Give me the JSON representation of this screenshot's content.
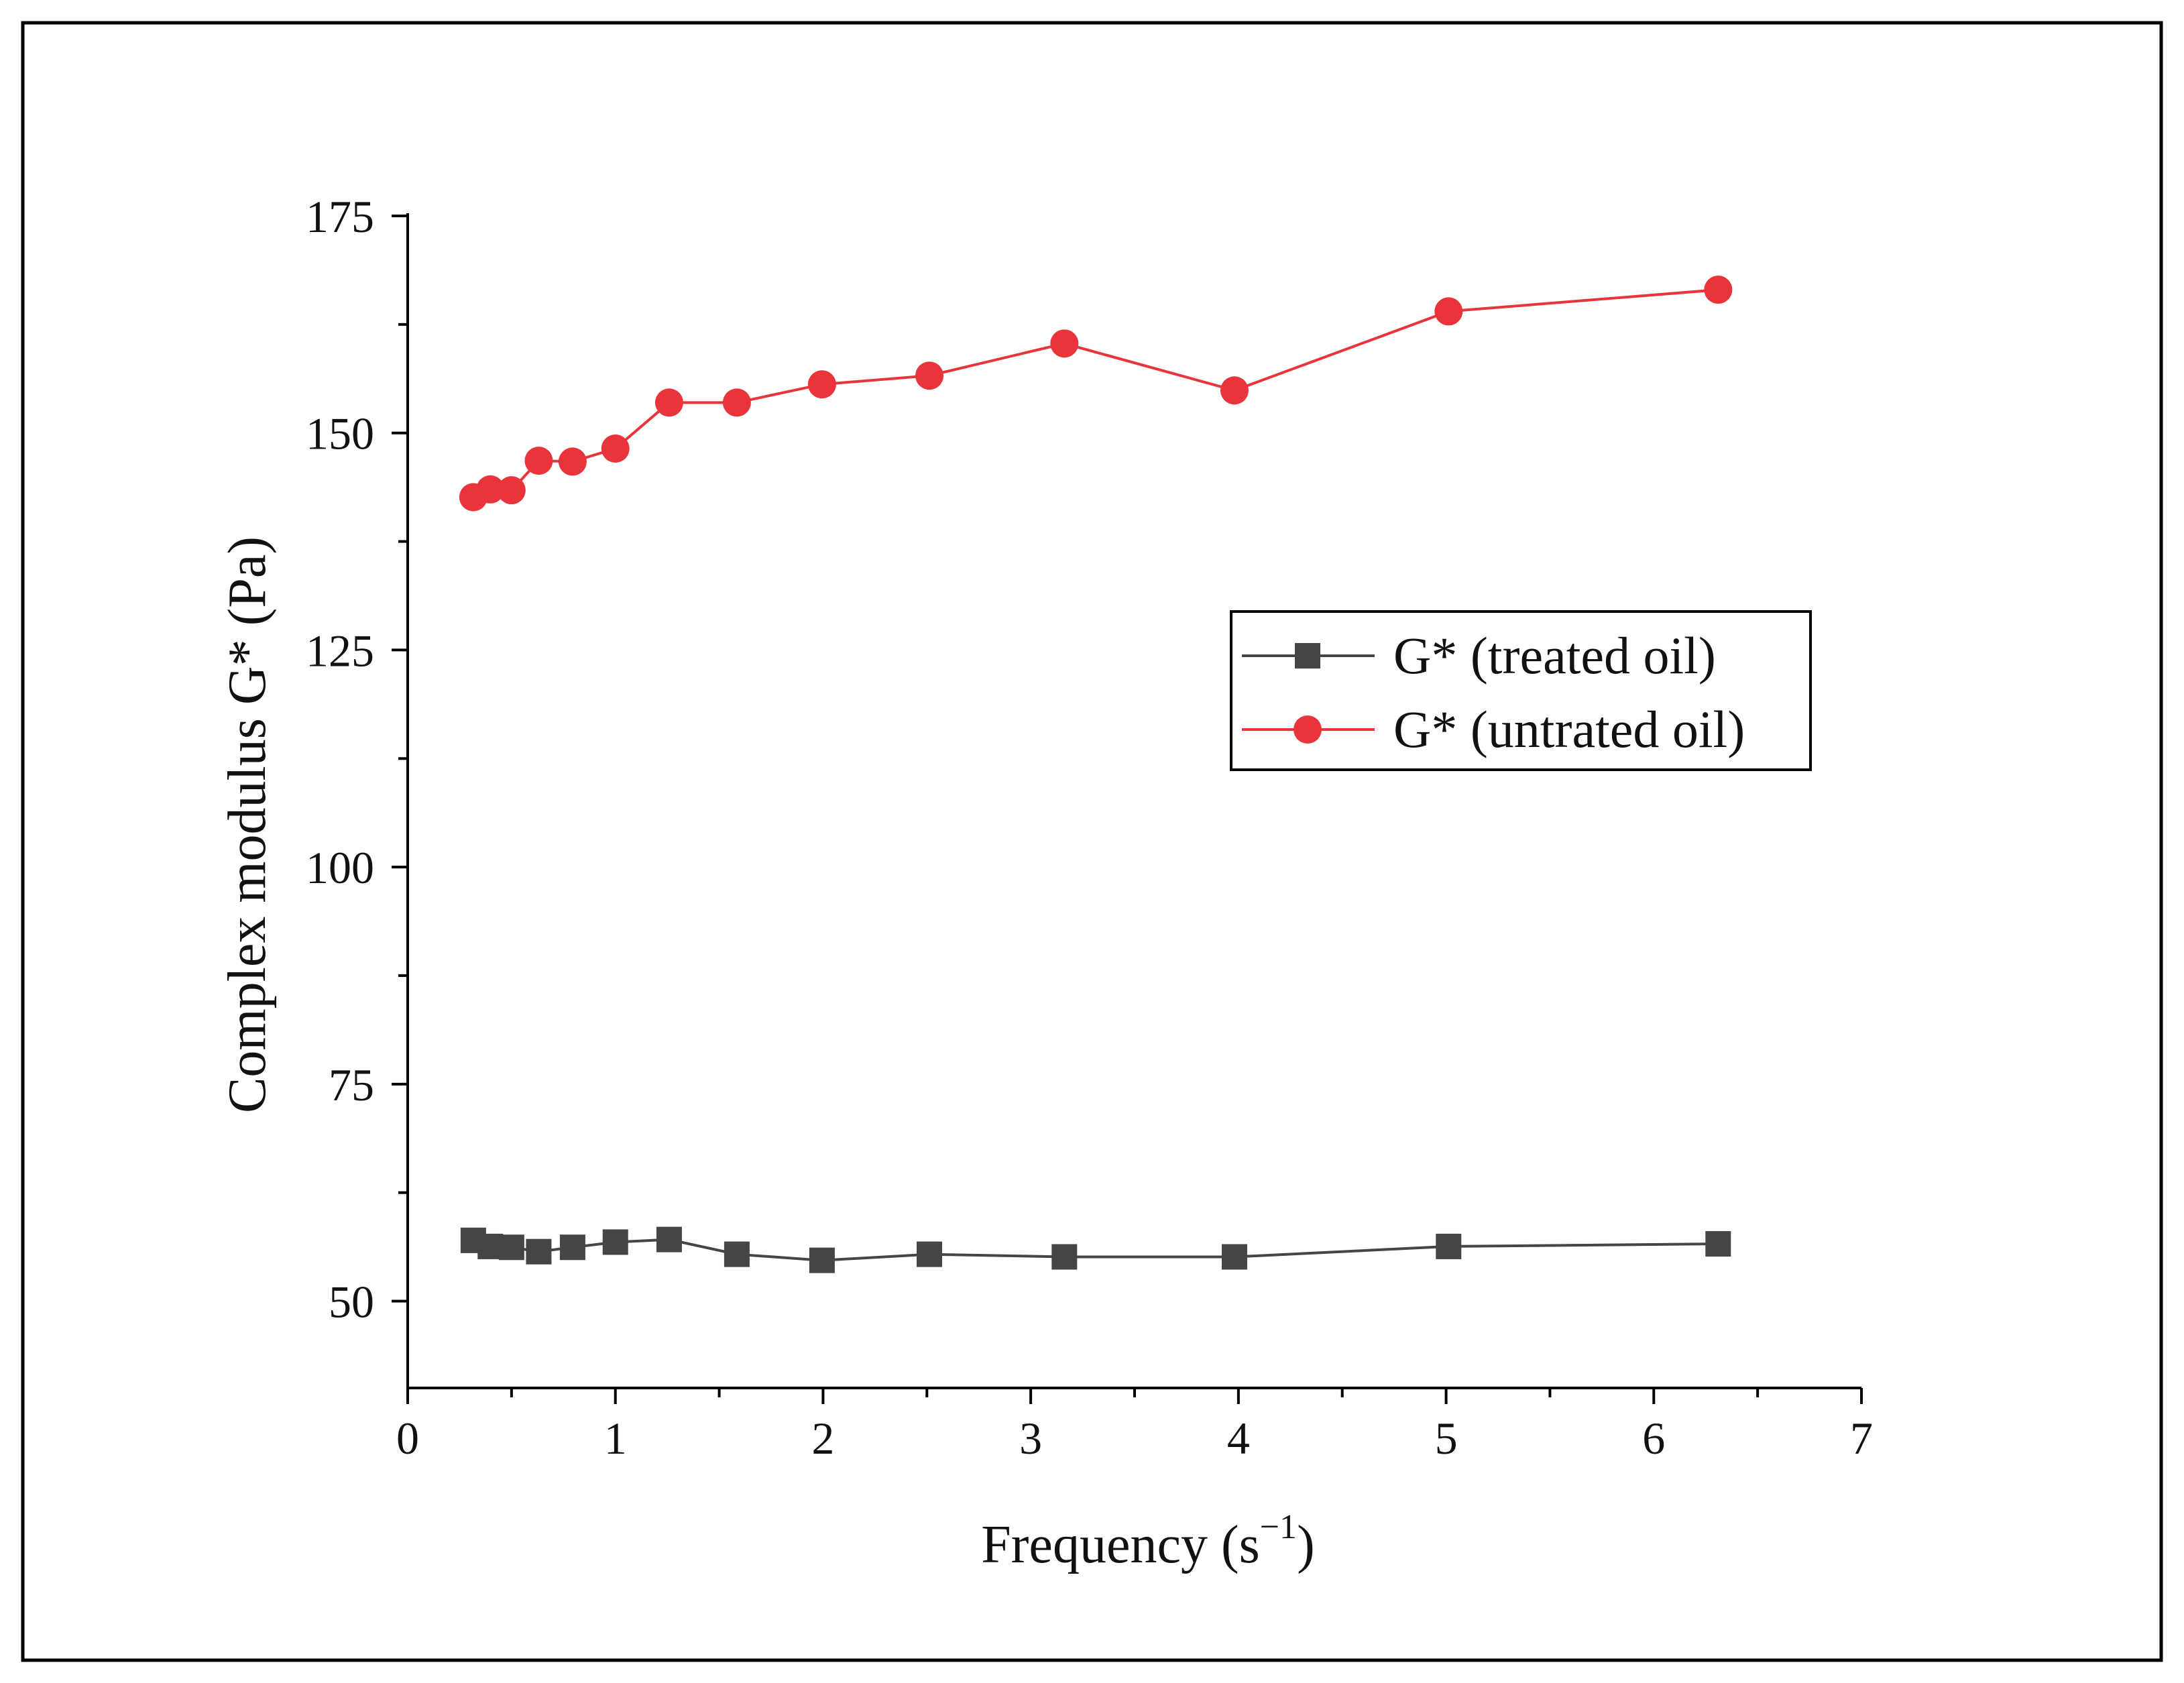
{
  "chart_data": {
    "type": "line",
    "xlabel": "Frequency (s",
    "xlabel_superscript": "−1",
    "xlabel_close": ")",
    "ylabel": "Complex modulus G* (Pa)",
    "xlim": [
      0,
      7
    ],
    "ylim": [
      40,
      175
    ],
    "xticks": [
      0,
      1,
      2,
      3,
      4,
      5,
      6,
      7
    ],
    "yticks": [
      50,
      75,
      100,
      125,
      150,
      175
    ],
    "legend_position": "center-right",
    "grid": false,
    "series": [
      {
        "name": "G* (treated oil)",
        "color": "#454545",
        "marker": "square",
        "x": [
          0.316,
          0.398,
          0.5,
          0.631,
          0.794,
          1.0,
          1.259,
          1.585,
          1.995,
          2.512,
          3.162,
          3.981,
          5.012,
          6.31
        ],
        "y": [
          57.0,
          56.3,
          56.2,
          55.7,
          56.2,
          56.8,
          57.1,
          55.4,
          54.7,
          55.4,
          55.1,
          55.1,
          56.3,
          56.6
        ]
      },
      {
        "name": "G* (untrated oil)",
        "color": "#e8343a",
        "marker": "circle",
        "x": [
          0.316,
          0.398,
          0.5,
          0.631,
          0.794,
          1.0,
          1.259,
          1.585,
          1.995,
          2.512,
          3.162,
          3.981,
          5.012,
          6.31
        ],
        "y": [
          142.6,
          143.5,
          143.4,
          146.8,
          146.7,
          148.2,
          153.5,
          153.5,
          155.6,
          156.6,
          160.3,
          154.9,
          164.0,
          166.5
        ]
      }
    ]
  }
}
